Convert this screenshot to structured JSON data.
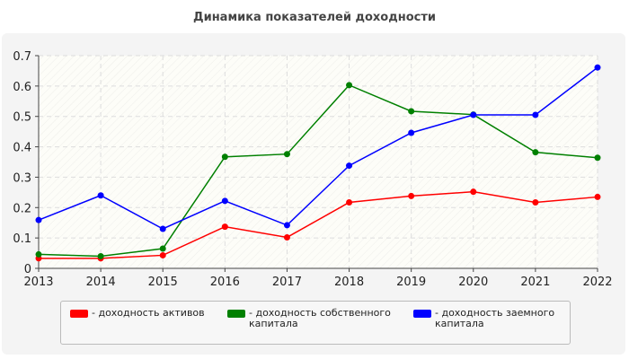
{
  "chart_data": {
    "type": "line",
    "title": "Динамика показателей доходности",
    "x": [
      "2013",
      "2014",
      "2015",
      "2016",
      "2017",
      "2018",
      "2019",
      "2020",
      "2021",
      "2022"
    ],
    "ylim": [
      0,
      0.7
    ],
    "yticks": [
      "0",
      "0.1",
      "0.2",
      "0.3",
      "0.4",
      "0.5",
      "0.6",
      "0.7"
    ],
    "grid": true,
    "legend_position": "bottom",
    "series": [
      {
        "name": "- доходность активов",
        "color": "#ff0000",
        "values": [
          0.033,
          0.033,
          0.043,
          0.137,
          0.102,
          0.217,
          0.238,
          0.252,
          0.217,
          0.235
        ]
      },
      {
        "name": "- доходность собственного капитала",
        "color": "#008000",
        "values": [
          0.046,
          0.04,
          0.065,
          0.367,
          0.376,
          0.603,
          0.517,
          0.506,
          0.382,
          0.364
        ]
      },
      {
        "name": "- доходность заемного капитала",
        "color": "#0000ff",
        "values": [
          0.159,
          0.24,
          0.13,
          0.222,
          0.142,
          0.338,
          0.446,
          0.505,
          0.505,
          0.661
        ]
      }
    ]
  }
}
